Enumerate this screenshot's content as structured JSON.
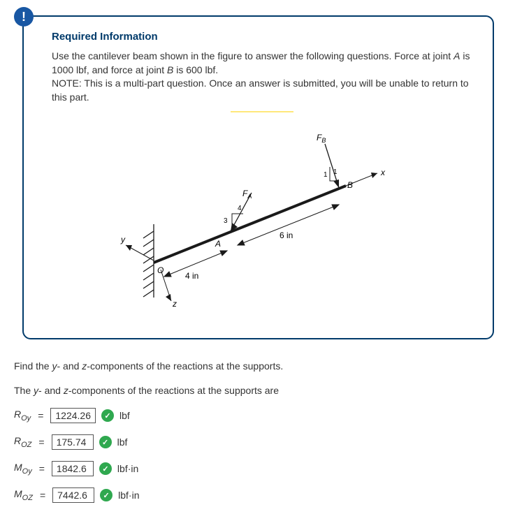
{
  "card": {
    "badge_icon": "!",
    "title": "Required Information",
    "intro_html": "Use the cantilever beam shown in the figure to answer the following questions. Force at joint <em>A</em> is 1000 lbf, and force at joint <em>B</em> is 600 lbf.<br>NOTE: This is a multi-part question. Once an answer is submitted, you will be unable to return to this part.",
    "colors": {
      "border": "#003a6a",
      "badge_bg": "#1857a3",
      "badge_fg": "#ffffff",
      "highlight": "#ffe87a",
      "check_bg": "#2fa84f"
    }
  },
  "figure": {
    "labels": {
      "FB": "F",
      "FB_sub": "B",
      "FA": "F",
      "FA_sub": "A",
      "x": "x",
      "y": "y",
      "z": "z",
      "O": "O",
      "A": "A",
      "B": "B",
      "dim_4in": "4 in",
      "dim_6in": "6 in",
      "ang3": "3",
      "ang4": "4",
      "angB1a": "1",
      "angB1b": "1"
    },
    "stroke": "#1a1a1a",
    "stroke_width": 1.3
  },
  "question": {
    "prompt": "Find the <em>y</em>- and <em>z</em>-components of the reactions at the supports.",
    "lead": "The <em>y</em>- and <em>z</em>-components of the reactions at the supports are",
    "answers": [
      {
        "symbol": "R",
        "sub": "Oy",
        "value": "1224.26",
        "unit": "lbf"
      },
      {
        "symbol": "R",
        "sub": "OZ",
        "value": "175.74",
        "unit": "lbf"
      },
      {
        "symbol": "M",
        "sub": "Oy",
        "value": "1842.6",
        "unit": "lbf·in"
      },
      {
        "symbol": "M",
        "sub": "OZ",
        "value": "7442.6",
        "unit": "lbf·in"
      }
    ]
  }
}
